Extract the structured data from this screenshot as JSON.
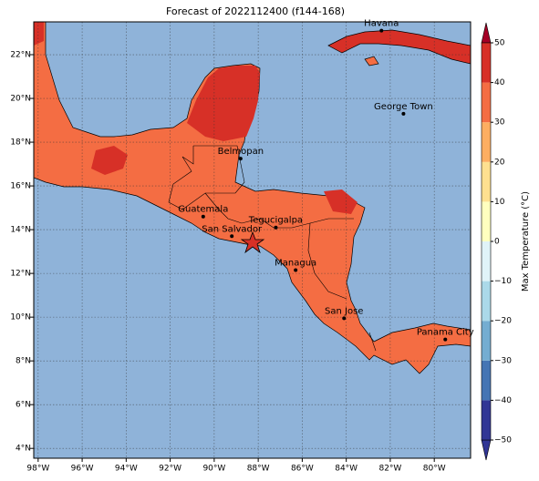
{
  "title": "Forecast of 2022112400 (f144-168)",
  "map": {
    "lon_lim": [
      -98.2,
      -78.35
    ],
    "lat_lim": [
      3.55,
      23.5
    ],
    "lon_ticks": [
      {
        "value": -98,
        "label": "98°W"
      },
      {
        "value": -96,
        "label": "96°W"
      },
      {
        "value": -94,
        "label": "94°W"
      },
      {
        "value": -92,
        "label": "92°W"
      },
      {
        "value": -90,
        "label": "90°W"
      },
      {
        "value": -88,
        "label": "88°W"
      },
      {
        "value": -86,
        "label": "86°W"
      },
      {
        "value": -84,
        "label": "84°W"
      },
      {
        "value": -82,
        "label": "82°W"
      },
      {
        "value": -80,
        "label": "80°W"
      }
    ],
    "lat_ticks": [
      {
        "value": 4,
        "label": "4°N"
      },
      {
        "value": 6,
        "label": "6°N"
      },
      {
        "value": 8,
        "label": "8°N"
      },
      {
        "value": 10,
        "label": "10°N"
      },
      {
        "value": 12,
        "label": "12°N"
      },
      {
        "value": 14,
        "label": "14°N"
      },
      {
        "value": 16,
        "label": "16°N"
      },
      {
        "value": 18,
        "label": "18°N"
      },
      {
        "value": 20,
        "label": "20°N"
      },
      {
        "value": 22,
        "label": "22°N"
      }
    ],
    "cities": [
      {
        "name": "Havana",
        "lon": -82.4,
        "lat": 23.1
      },
      {
        "name": "George Town",
        "lon": -81.4,
        "lat": 19.3
      },
      {
        "name": "Belmopan",
        "lon": -88.8,
        "lat": 17.25
      },
      {
        "name": "Guatemala",
        "lon": -90.5,
        "lat": 14.6
      },
      {
        "name": "San Salvador",
        "lon": -89.2,
        "lat": 13.7
      },
      {
        "name": "Tegucigalpa",
        "lon": -87.2,
        "lat": 14.1
      },
      {
        "name": "Managua",
        "lon": -86.3,
        "lat": 12.15
      },
      {
        "name": "San Jose",
        "lon": -84.1,
        "lat": 9.95
      },
      {
        "name": "Panama City",
        "lon": -79.5,
        "lat": 8.98
      }
    ]
  },
  "colorbar": {
    "label": "Max Temperature (°C)",
    "lim": [
      -50,
      50
    ],
    "ticks": [
      {
        "value": -50,
        "label": "−50"
      },
      {
        "value": -40,
        "label": "−40"
      },
      {
        "value": -30,
        "label": "−30"
      },
      {
        "value": -20,
        "label": "−20"
      },
      {
        "value": -10,
        "label": "−10"
      },
      0,
      10,
      20,
      30,
      40,
      50
    ],
    "colors": [
      "#313695",
      "#4575b4",
      "#74add1",
      "#abd9e9",
      "#e0f3f8",
      "#ffffbf",
      "#fee090",
      "#fdae61",
      "#f46d43",
      "#d73027",
      "#a50026"
    ]
  }
}
